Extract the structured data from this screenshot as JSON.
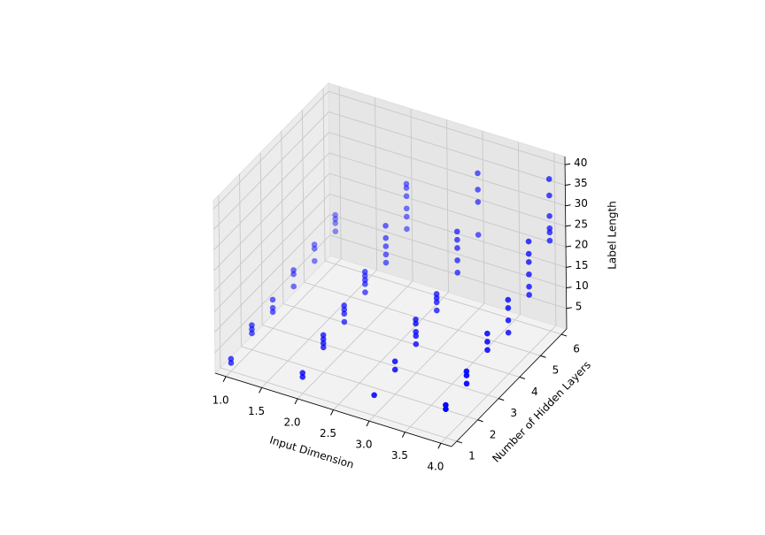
{
  "chart_data": {
    "type": "scatter3d",
    "x_label": "Input Dimension",
    "y_label": "Number of Hidden Layers",
    "z_label": "Label Length",
    "xlim": [
      0.85,
      4.15
    ],
    "ylim": [
      0.75,
      6.25
    ],
    "zlim": [
      0,
      42
    ],
    "xticks": [
      {
        "value": 1.0,
        "label": "1.0"
      },
      {
        "value": 1.5,
        "label": "1.5"
      },
      {
        "value": 2.0,
        "label": "2.0"
      },
      {
        "value": 2.5,
        "label": "2.5"
      },
      {
        "value": 3.0,
        "label": "3.0"
      },
      {
        "value": 3.5,
        "label": "3.5"
      },
      {
        "value": 4.0,
        "label": "4.0"
      }
    ],
    "yticks": [
      1,
      2,
      3,
      4,
      5,
      6
    ],
    "zticks": [
      5,
      10,
      15,
      20,
      25,
      30,
      35,
      40
    ],
    "grid": true,
    "depthshade": true,
    "series": [
      {
        "color": "#0000ff",
        "x": [
          1,
          1,
          1,
          1,
          1,
          1,
          1,
          1,
          1,
          1,
          1,
          1,
          1,
          1,
          1,
          1,
          1,
          1,
          2,
          2,
          2,
          2,
          2,
          2,
          2,
          2,
          2,
          2,
          2,
          2,
          2,
          2,
          2,
          2,
          2,
          2,
          2,
          2,
          2,
          2,
          2,
          2,
          2,
          2,
          3,
          3,
          3,
          3,
          3,
          3,
          3,
          3,
          3,
          3,
          3,
          3,
          3,
          3,
          3,
          3,
          3,
          3,
          3,
          3,
          3,
          4,
          4,
          4,
          4,
          4,
          4,
          4,
          4,
          4,
          4,
          4,
          4,
          4,
          4,
          4,
          4,
          4,
          4,
          4,
          4,
          4,
          4,
          4,
          4
        ],
        "y": [
          1,
          1,
          2,
          2,
          2,
          3,
          3,
          3,
          4,
          4,
          4,
          5,
          5,
          5,
          6,
          6,
          6,
          6,
          1,
          1,
          2,
          2,
          2,
          2,
          3,
          3,
          3,
          3,
          4,
          4,
          4,
          4,
          4,
          5,
          5,
          5,
          5,
          5,
          6,
          6,
          6,
          6,
          6,
          6,
          1,
          2,
          2,
          3,
          3,
          3,
          3,
          3,
          4,
          4,
          4,
          4,
          5,
          5,
          5,
          5,
          5,
          6,
          6,
          6,
          6,
          1,
          1,
          2,
          2,
          2,
          3,
          3,
          3,
          4,
          4,
          4,
          4,
          5,
          5,
          5,
          5,
          5,
          5,
          6,
          6,
          6,
          6,
          6,
          6
        ],
        "z": [
          2,
          3,
          4,
          5,
          6,
          4,
          5,
          7,
          5,
          8,
          9,
          6,
          9,
          10,
          8,
          10,
          11,
          12,
          4,
          5,
          6,
          7,
          8,
          9,
          7,
          9,
          10,
          11,
          9,
          11,
          12,
          13,
          14,
          11,
          13,
          15,
          17,
          20,
          14,
          17,
          19,
          22,
          24,
          25,
          5,
          6,
          8,
          7,
          9,
          10,
          12,
          13,
          10,
          12,
          13,
          14,
          14,
          17,
          20,
          22,
          24,
          18,
          26,
          29,
          33,
          7,
          8,
          8,
          10,
          11,
          11,
          13,
          15,
          10,
          13,
          16,
          18,
          14,
          16,
          19,
          22,
          24,
          27,
          22,
          24,
          25,
          28,
          33,
          37
        ]
      }
    ]
  }
}
